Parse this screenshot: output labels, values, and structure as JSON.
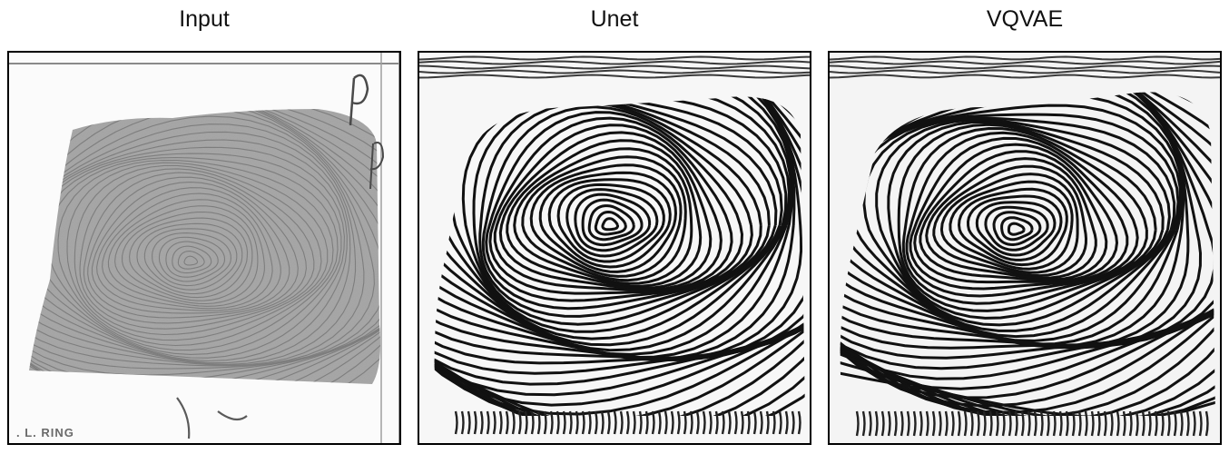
{
  "panels": [
    {
      "title": "Input",
      "kind": "input-fingerprint-scan"
    },
    {
      "title": "Unet",
      "kind": "enhanced-ridge-map"
    },
    {
      "title": "VQVAE",
      "kind": "enhanced-ridge-map"
    }
  ],
  "input_card_label": ". L. RING"
}
